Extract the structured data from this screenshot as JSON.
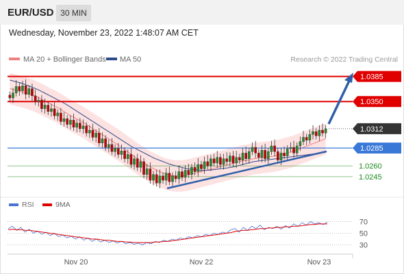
{
  "header": {
    "pair": "EUR/USD",
    "interval": "30 MIN",
    "datetime": "Wednesday, November 23, 2022 1:48:07 AM CET"
  },
  "legend": {
    "ma20": "MA 20 + Bollinger Bands",
    "ma50": "MA 50",
    "copyright": "Research © 2022 Trading Central",
    "rsi": "RSI",
    "ma9": "9MA"
  },
  "colors": {
    "ma20": "#f08080",
    "ma50": "#2e4a8a",
    "bollinger_fill": "#fde2e2",
    "resistance": "#e00000",
    "support_blue": "#3a78d8",
    "support_green": "#1a8a1a",
    "last_price": "#333333",
    "trend": "#2f5fa8",
    "rsi": "#4a72d4",
    "rsi_ma": "#e00000"
  },
  "chart_data": [
    {
      "type": "candlestick",
      "title": "EUR/USD",
      "interval": "30 MIN",
      "ylim": [
        1.022,
        1.04
      ],
      "x_tick_labels": [
        "Nov 20",
        "Nov 22",
        "Nov 23"
      ],
      "levels": [
        {
          "name": "resistance",
          "value": 1.0385,
          "label": "1.0385",
          "color": "#e00000",
          "badge": true
        },
        {
          "name": "resistance",
          "value": 1.035,
          "label": "1.0350",
          "color": "#e00000",
          "badge": true
        },
        {
          "name": "last",
          "value": 1.0312,
          "label": "1.0312",
          "color": "#333333",
          "badge": true,
          "dotted": true
        },
        {
          "name": "pivot",
          "value": 1.0285,
          "label": "1.0285",
          "color": "#3a78d8",
          "badge": true
        },
        {
          "name": "support",
          "value": 1.026,
          "label": "1.0260",
          "color": "#1a8a1a",
          "badge": false
        },
        {
          "name": "support",
          "value": 1.0245,
          "label": "1.0245",
          "color": "#1a8a1a",
          "badge": false
        }
      ],
      "ohlc_close": [
        1.0355,
        1.0362,
        1.0371,
        1.0365,
        1.0372,
        1.036,
        1.0368,
        1.0358,
        1.035,
        1.0352,
        1.034,
        1.0345,
        1.0336,
        1.034,
        1.033,
        1.0334,
        1.0322,
        1.0326,
        1.0318,
        1.0324,
        1.0314,
        1.032,
        1.0312,
        1.0316,
        1.0306,
        1.031,
        1.03,
        1.0306,
        1.0292,
        1.0298,
        1.0286,
        1.029,
        1.028,
        1.0285,
        1.0276,
        1.0281,
        1.027,
        1.0276,
        1.0262,
        1.027,
        1.0258,
        1.0266,
        1.0248,
        1.0256,
        1.024,
        1.0248,
        1.0236,
        1.0246,
        1.024,
        1.025,
        1.0238,
        1.0246,
        1.0242,
        1.0252,
        1.0244,
        1.0254,
        1.0248,
        1.0258,
        1.0252,
        1.0262,
        1.0256,
        1.0266,
        1.026,
        1.027,
        1.0264,
        1.0272,
        1.0262,
        1.027,
        1.0266,
        1.0274,
        1.0264,
        1.0272,
        1.0268,
        1.0278,
        1.027,
        1.028,
        1.0286,
        1.0278,
        1.0272,
        1.0282,
        1.027,
        1.028,
        1.0288,
        1.028,
        1.0268,
        1.0278,
        1.0274,
        1.0284,
        1.0286,
        1.0278,
        1.0288,
        1.0294,
        1.03,
        1.0296,
        1.0304,
        1.0308,
        1.0302,
        1.031,
        1.0306,
        1.0312
      ],
      "ma20": [
        1.0368,
        1.0366,
        1.0364,
        1.0362,
        1.0359,
        1.0356,
        1.0352,
        1.0348,
        1.0344,
        1.034,
        1.0335,
        1.033,
        1.0326,
        1.0322,
        1.0317,
        1.0312,
        1.0307,
        1.0302,
        1.0297,
        1.0292,
        1.0287,
        1.0281,
        1.0276,
        1.027,
        1.0265,
        1.026,
        1.0256,
        1.0252,
        1.0249,
        1.0247,
        1.0246,
        1.0246,
        1.0247,
        1.0249,
        1.0251,
        1.0253,
        1.0255,
        1.0257,
        1.0259,
        1.0261,
        1.0263,
        1.0265,
        1.0267,
        1.0268,
        1.027,
        1.0271,
        1.0272,
        1.0273,
        1.0274,
        1.0276,
        1.0278,
        1.028,
        1.0283,
        1.0286,
        1.0289,
        1.0292,
        1.0295,
        1.0298
      ],
      "ma50": [
        1.038,
        1.0378,
        1.0376,
        1.0373,
        1.037,
        1.0367,
        1.0363,
        1.0359,
        1.0355,
        1.0351,
        1.0347,
        1.0342,
        1.0337,
        1.0332,
        1.0327,
        1.0322,
        1.0317,
        1.0312,
        1.0307,
        1.0302,
        1.0297,
        1.0292,
        1.0287,
        1.0283,
        1.0279,
        1.0275,
        1.0271,
        1.0268,
        1.0265,
        1.0262,
        1.026,
        1.0258,
        1.0256,
        1.0255,
        1.0254,
        1.0254,
        1.0254,
        1.0255,
        1.0256,
        1.0257,
        1.0258,
        1.026,
        1.0262,
        1.0264,
        1.0266,
        1.0267,
        1.0268,
        1.0269,
        1.027,
        1.0271,
        1.0272,
        1.0273,
        1.0274,
        1.0275,
        1.0276,
        1.0277,
        1.0278,
        1.0279
      ]
    },
    {
      "type": "line",
      "title": "RSI",
      "ylim": [
        20,
        80
      ],
      "y_tick_labels": [
        "70",
        "50",
        "30"
      ],
      "series": [
        {
          "name": "RSI",
          "values": [
            58,
            62,
            55,
            60,
            52,
            57,
            50,
            54,
            48,
            52,
            46,
            50,
            44,
            47,
            42,
            45,
            40,
            44,
            38,
            42,
            36,
            40,
            35,
            38,
            34,
            37,
            33,
            36,
            32,
            34,
            31,
            33,
            30,
            34,
            32,
            36,
            34,
            38,
            36,
            40,
            38,
            42,
            40,
            44,
            42,
            46,
            44,
            48,
            46,
            50,
            48,
            52,
            50,
            56,
            58,
            52,
            60,
            55,
            62,
            58,
            64,
            56,
            60,
            58,
            62,
            57,
            63,
            59,
            66,
            62,
            68,
            64,
            70,
            66,
            68,
            65,
            69
          ]
        },
        {
          "name": "9MA",
          "values": [
            56,
            57,
            56,
            56,
            55,
            55,
            54,
            53,
            52,
            51,
            50,
            49,
            48,
            47,
            46,
            45,
            44,
            43,
            42,
            41,
            40,
            40,
            39,
            38,
            38,
            37,
            36,
            36,
            35,
            35,
            34,
            34,
            34,
            34,
            34,
            35,
            35,
            36,
            36,
            37,
            38,
            39,
            40,
            41,
            42,
            43,
            44,
            45,
            46,
            47,
            48,
            49,
            50,
            51,
            53,
            54,
            55,
            55,
            56,
            57,
            58,
            58,
            59,
            59,
            60,
            60,
            61,
            61,
            62,
            62,
            63,
            64,
            65,
            65,
            66,
            66,
            66
          ]
        }
      ]
    }
  ]
}
